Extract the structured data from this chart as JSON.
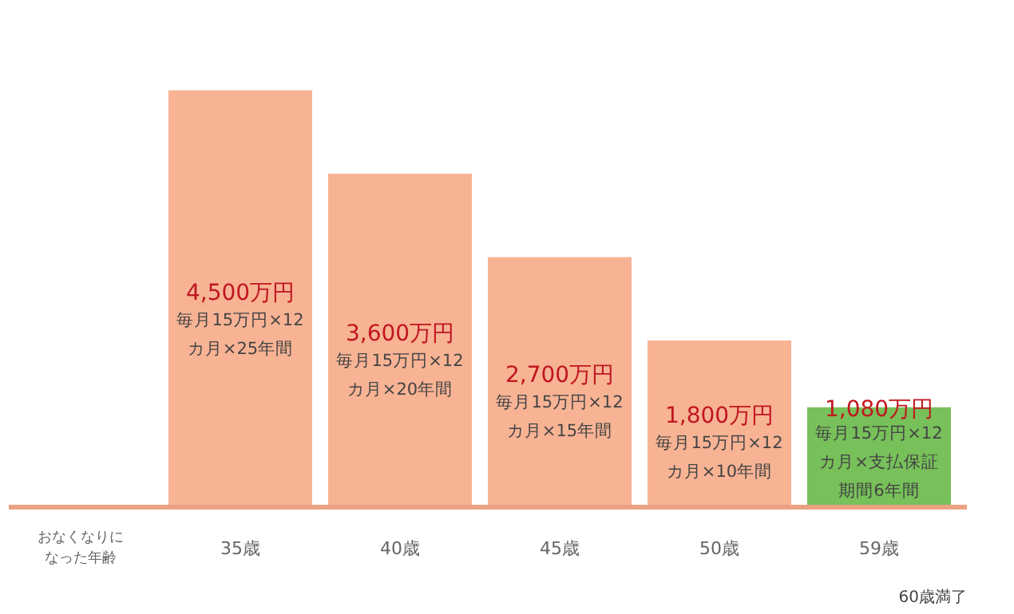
{
  "chart_data": {
    "type": "bar",
    "categories": [
      "35歳",
      "40歳",
      "45歳",
      "50歳",
      "59歳"
    ],
    "values": [
      4500,
      3600,
      2700,
      1800,
      1080
    ],
    "colors": [
      "#f7b394",
      "#f7b394",
      "#f7b394",
      "#f7b394",
      "#77c05a"
    ],
    "value_labels": [
      "4,500万円",
      "3,600万円",
      "2,700万円",
      "1,800万円",
      "1,080万円"
    ],
    "xlabel": "おなくなりになった年齢",
    "annotations": [
      "毎月15万円×12カ月×25年間",
      "毎月15万円×12カ月×20年間",
      "毎月15万円×12カ月×15年間",
      "毎月15万円×12カ月×10年間",
      "毎月15万円×12カ月×支払保証期間6年間",
      "60歳満了"
    ]
  }
}
